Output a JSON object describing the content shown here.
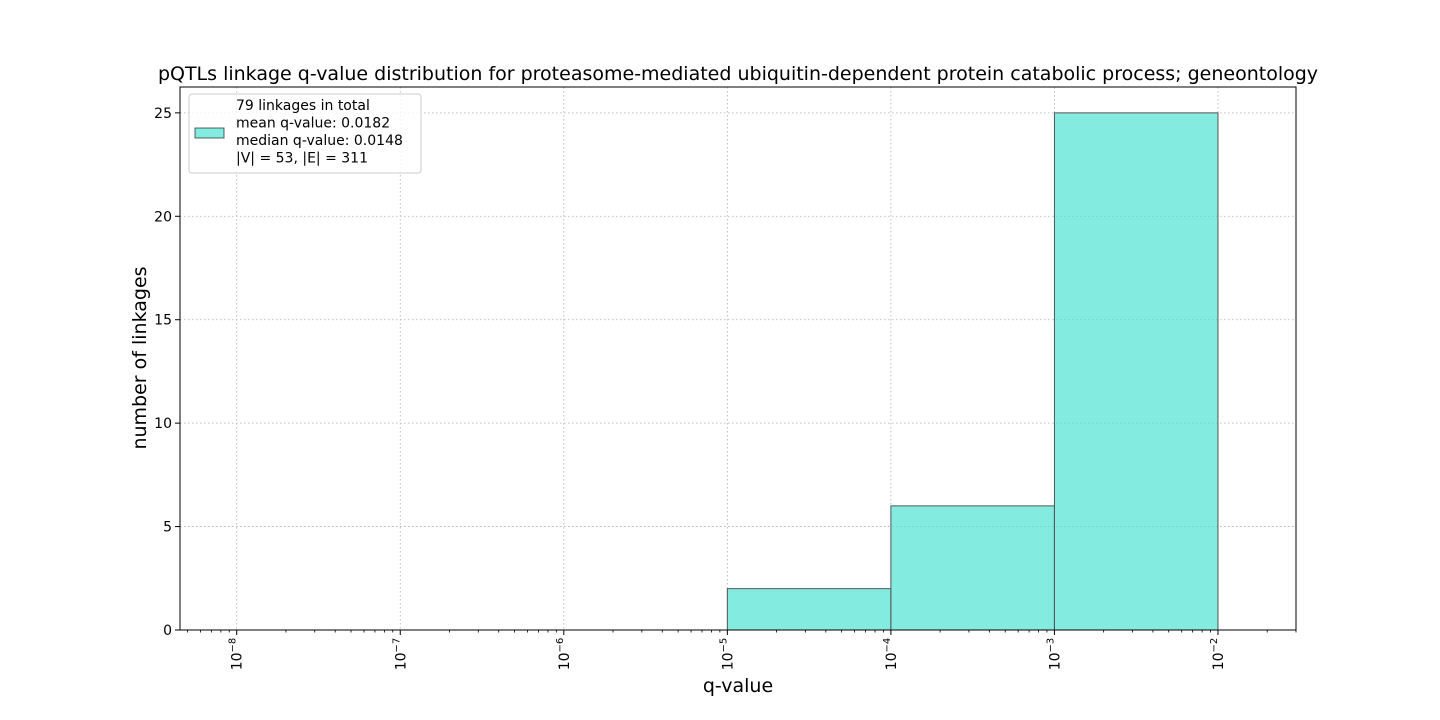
{
  "chart_data": {
    "type": "histogram",
    "title": "pQTLs linkage q-value distribution for proteasome-mediated ubiquitin-dependent protein catabolic process; geneontology",
    "xlabel": "q-value",
    "ylabel": "number of linkages",
    "x_scale": "log",
    "xlim": [
      4.5e-09,
      0.03
    ],
    "ylim": [
      0,
      26.25
    ],
    "grid": true,
    "x_ticks": [
      1e-08,
      1e-07,
      1e-06,
      1e-05,
      0.0001,
      0.001,
      0.01
    ],
    "x_tick_labels": [
      {
        "base": "10",
        "exp": "−8"
      },
      {
        "base": "10",
        "exp": "−7"
      },
      {
        "base": "10",
        "exp": "−6"
      },
      {
        "base": "10",
        "exp": "−5"
      },
      {
        "base": "10",
        "exp": "−4"
      },
      {
        "base": "10",
        "exp": "−3"
      },
      {
        "base": "10",
        "exp": "−2"
      }
    ],
    "y_ticks": [
      0,
      5,
      10,
      15,
      20,
      25
    ],
    "y_tick_labels": [
      "0",
      "5",
      "10",
      "15",
      "20",
      "25"
    ],
    "bins": [
      {
        "from": 1e-05,
        "to": 0.0001,
        "count": 2
      },
      {
        "from": 0.0001,
        "to": 0.001,
        "count": 6
      },
      {
        "from": 0.001,
        "to": 0.01,
        "count": 25
      }
    ],
    "bar_color": "#40E0D0",
    "legend": {
      "position": "upper left",
      "lines": [
        "79 linkages in total",
        "mean q-value: 0.0182",
        "median q-value: 0.0148",
        "|V| = 53, |E| = 311"
      ]
    }
  }
}
